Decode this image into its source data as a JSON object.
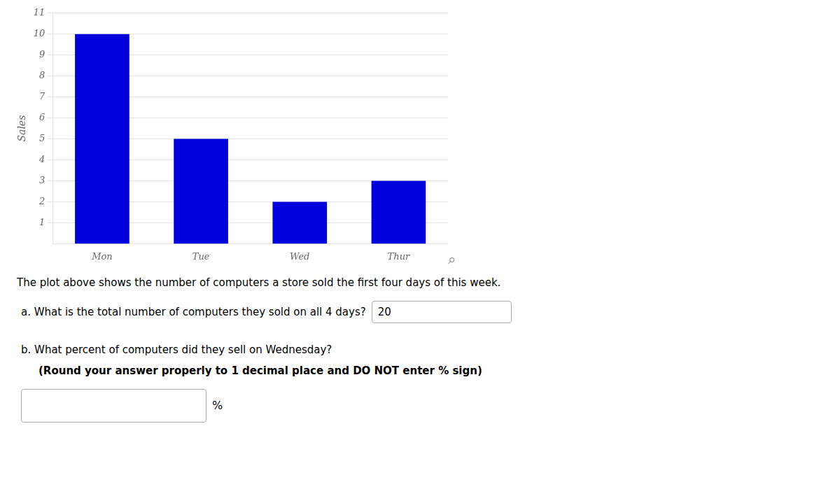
{
  "chart_data": {
    "type": "bar",
    "categories": [
      "Mon",
      "Tue",
      "Wed",
      "Thur"
    ],
    "values": [
      10,
      5,
      2,
      3
    ],
    "color": "#0000dd",
    "ylabel": "Sales",
    "ylim": [
      0,
      11
    ],
    "yticks": [
      1,
      2,
      3,
      4,
      5,
      6,
      7,
      8,
      9,
      10,
      11
    ],
    "grid": true,
    "annotations": [
      "⌕",
      "The plot above shows the number of computers a store sold the first four days of this week.",
      "a. What is the total number of computers they sold on all 4 days?",
      "20",
      "b. What percent of computers did they sell on Wednesday?",
      "(Round your answer properly to 1 decimal place and DO NOT enter % sign)",
      "%"
    ]
  }
}
